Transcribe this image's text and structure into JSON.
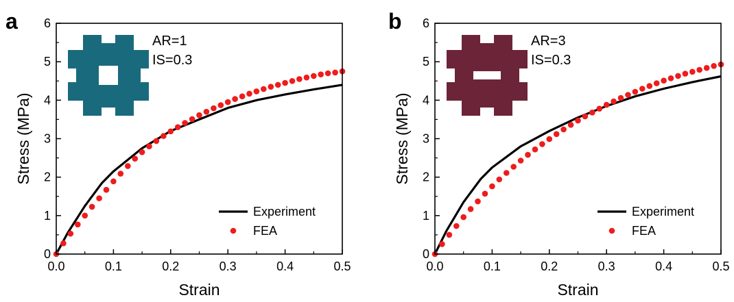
{
  "chart_data": [
    {
      "panel_label": "a",
      "type": "line",
      "xlabel": "Strain",
      "ylabel": "Stress (MPa)",
      "xlim": [
        0.0,
        0.5
      ],
      "ylim": [
        0,
        6
      ],
      "xticks": [
        "0.0",
        "0.1",
        "0.2",
        "0.3",
        "0.4",
        "0.5"
      ],
      "yticks": [
        "0",
        "1",
        "2",
        "3",
        "4",
        "5",
        "6"
      ],
      "grid": false,
      "legend_position": "bottom-right",
      "annotation": [
        "AR=1",
        "IS=0.3"
      ],
      "inset_color": "#1a6a7e",
      "series": [
        {
          "name": "Experiment",
          "style": "line",
          "color": "#000000",
          "x": [
            0,
            0.02,
            0.05,
            0.08,
            0.1,
            0.15,
            0.2,
            0.25,
            0.3,
            0.35,
            0.4,
            0.45,
            0.5
          ],
          "y": [
            0,
            0.55,
            1.25,
            1.85,
            2.15,
            2.75,
            3.2,
            3.5,
            3.8,
            4.0,
            4.15,
            4.28,
            4.4
          ]
        },
        {
          "name": "FEA",
          "style": "markers",
          "color": "#ee1c1c",
          "x": [
            0,
            0.0125,
            0.025,
            0.0375,
            0.05,
            0.0625,
            0.075,
            0.0875,
            0.1,
            0.1125,
            0.125,
            0.1375,
            0.15,
            0.1625,
            0.175,
            0.1875,
            0.2,
            0.2125,
            0.225,
            0.2375,
            0.25,
            0.2625,
            0.275,
            0.2875,
            0.3,
            0.3125,
            0.325,
            0.3375,
            0.35,
            0.3625,
            0.375,
            0.3875,
            0.4,
            0.4125,
            0.425,
            0.4375,
            0.45,
            0.4625,
            0.475,
            0.4875,
            0.5
          ],
          "y": [
            0,
            0.28,
            0.53,
            0.77,
            1.0,
            1.23,
            1.45,
            1.67,
            1.89,
            2.09,
            2.29,
            2.48,
            2.65,
            2.8,
            2.94,
            3.07,
            3.19,
            3.3,
            3.41,
            3.51,
            3.61,
            3.7,
            3.79,
            3.87,
            3.95,
            4.03,
            4.1,
            4.17,
            4.23,
            4.29,
            4.35,
            4.4,
            4.45,
            4.5,
            4.55,
            4.59,
            4.63,
            4.67,
            4.7,
            4.72,
            4.75
          ]
        }
      ]
    },
    {
      "panel_label": "b",
      "type": "line",
      "xlabel": "Strain",
      "ylabel": "Stress (MPa)",
      "xlim": [
        0.0,
        0.5
      ],
      "ylim": [
        0,
        6
      ],
      "xticks": [
        "0.0",
        "0.1",
        "0.2",
        "0.3",
        "0.4",
        "0.5"
      ],
      "yticks": [
        "0",
        "1",
        "2",
        "3",
        "4",
        "5",
        "6"
      ],
      "grid": false,
      "legend_position": "bottom-right",
      "annotation": [
        "AR=3",
        "IS=0.3"
      ],
      "inset_color": "#6b2438",
      "series": [
        {
          "name": "Experiment",
          "style": "line",
          "color": "#000000",
          "x": [
            0,
            0.02,
            0.05,
            0.08,
            0.1,
            0.15,
            0.2,
            0.25,
            0.3,
            0.35,
            0.4,
            0.45,
            0.5
          ],
          "y": [
            0,
            0.6,
            1.35,
            1.95,
            2.25,
            2.8,
            3.2,
            3.55,
            3.85,
            4.1,
            4.3,
            4.47,
            4.62
          ]
        },
        {
          "name": "FEA",
          "style": "markers",
          "color": "#ee1c1c",
          "x": [
            0,
            0.0125,
            0.025,
            0.0375,
            0.05,
            0.0625,
            0.075,
            0.0875,
            0.1,
            0.1125,
            0.125,
            0.1375,
            0.15,
            0.1625,
            0.175,
            0.1875,
            0.2,
            0.2125,
            0.225,
            0.2375,
            0.25,
            0.2625,
            0.275,
            0.2875,
            0.3,
            0.3125,
            0.325,
            0.3375,
            0.35,
            0.3625,
            0.375,
            0.3875,
            0.4,
            0.4125,
            0.425,
            0.4375,
            0.45,
            0.4625,
            0.475,
            0.4875,
            0.5
          ],
          "y": [
            0,
            0.26,
            0.5,
            0.73,
            0.96,
            1.17,
            1.37,
            1.57,
            1.76,
            1.94,
            2.11,
            2.27,
            2.43,
            2.58,
            2.72,
            2.86,
            2.99,
            3.12,
            3.24,
            3.36,
            3.47,
            3.58,
            3.68,
            3.78,
            3.88,
            3.97,
            4.06,
            4.14,
            4.22,
            4.3,
            4.37,
            4.44,
            4.51,
            4.57,
            4.63,
            4.69,
            4.74,
            4.79,
            4.84,
            4.89,
            4.93
          ]
        }
      ]
    }
  ]
}
